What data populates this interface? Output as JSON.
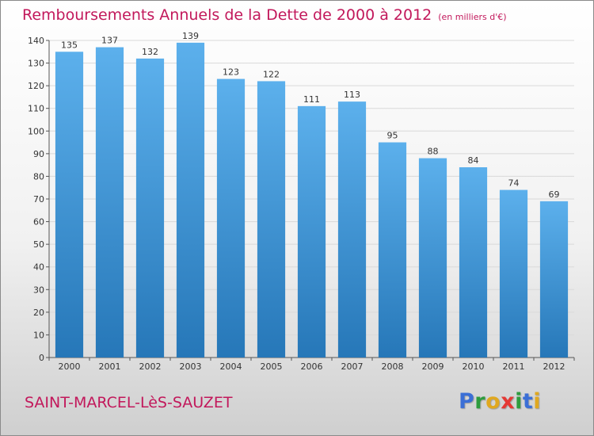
{
  "title": "Remboursements Annuels de la Dette de 2000 à 2012",
  "unit_label": "(en milliers d'€)",
  "commune": "SAINT-MARCEL-LèS-SAUZET",
  "brand": {
    "letters": [
      {
        "char": "P",
        "color": "#3b6fd6"
      },
      {
        "char": "r",
        "color": "#2e9c3e"
      },
      {
        "char": "o",
        "color": "#e0a820"
      },
      {
        "char": "x",
        "color": "#e53935"
      },
      {
        "char": "i",
        "color": "#2e9c3e"
      },
      {
        "char": "t",
        "color": "#3b6fd6"
      },
      {
        "char": "i",
        "color": "#e0a820"
      }
    ]
  },
  "colors": {
    "title": "#c2185b",
    "bar_top": "#5cb0ec",
    "bar_bottom": "#2677b8",
    "grid": "#d9d9d9",
    "axis_text": "#333333"
  },
  "chart_data": {
    "type": "bar",
    "categories": [
      "2000",
      "2001",
      "2002",
      "2003",
      "2004",
      "2005",
      "2006",
      "2007",
      "2008",
      "2009",
      "2010",
      "2011",
      "2012"
    ],
    "values": [
      135,
      137,
      132,
      139,
      123,
      122,
      111,
      113,
      95,
      88,
      84,
      74,
      69
    ],
    "ylim": [
      0,
      140
    ],
    "yticks": [
      0,
      10,
      20,
      30,
      40,
      50,
      60,
      70,
      80,
      90,
      100,
      110,
      120,
      130,
      140
    ],
    "grid": true,
    "data_labels": true
  }
}
